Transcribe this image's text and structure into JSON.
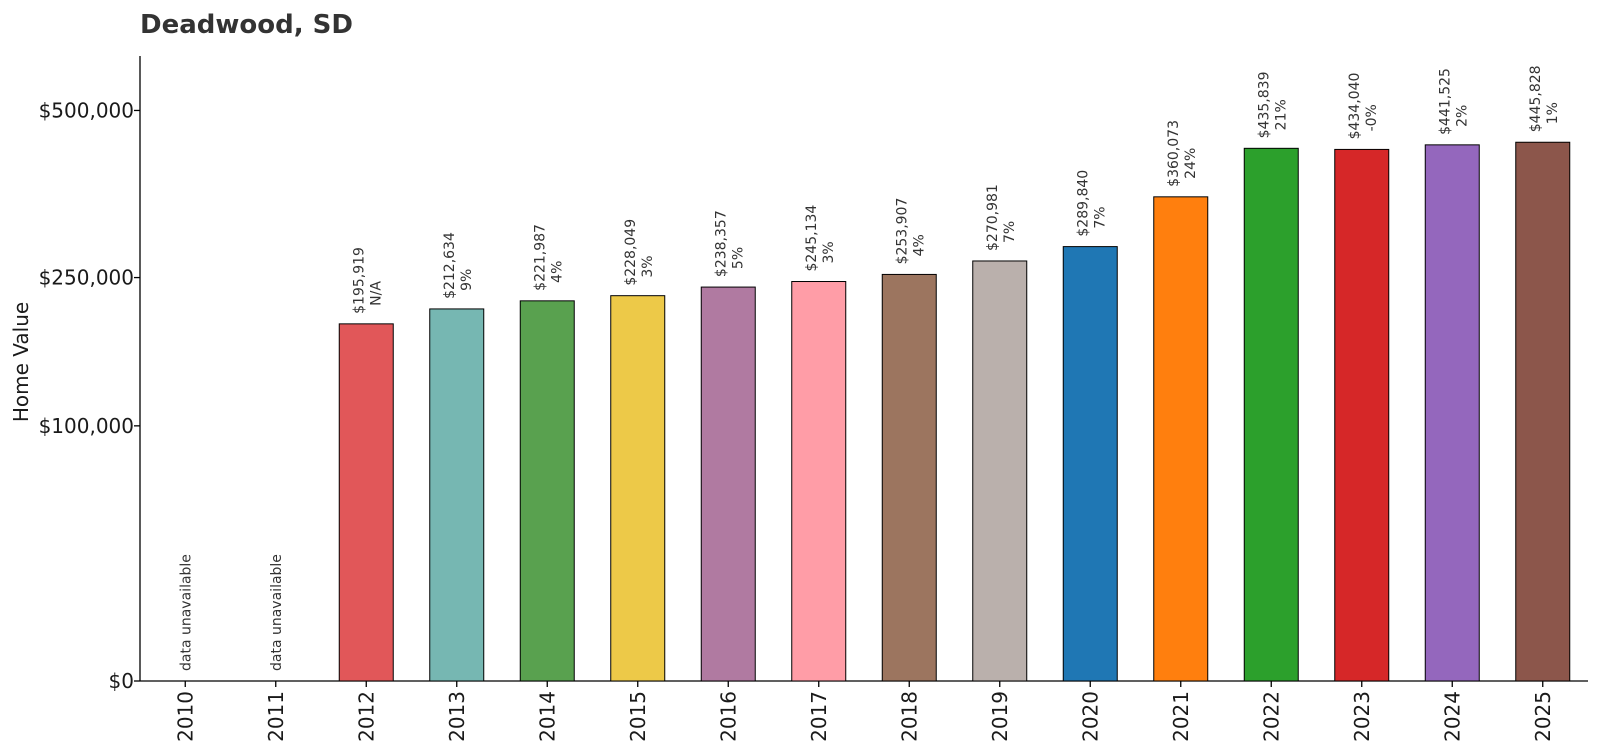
{
  "chart_data": {
    "type": "bar",
    "title": "Deadwood, SD",
    "xlabel": "",
    "ylabel": "Home Value",
    "ylim": [
      0,
      600000
    ],
    "y_scale": "sqrt",
    "y_ticks": [
      0,
      100000,
      250000,
      500000
    ],
    "y_tick_labels": [
      "$0",
      "$100,000",
      "$250,000",
      "$500,000"
    ],
    "grid": false,
    "legend": "none",
    "categories": [
      "2010",
      "2011",
      "2012",
      "2013",
      "2014",
      "2015",
      "2016",
      "2017",
      "2018",
      "2019",
      "2020",
      "2021",
      "2022",
      "2023",
      "2024",
      "2025"
    ],
    "values": [
      null,
      null,
      195919,
      212634,
      221987,
      228049,
      238357,
      245134,
      253907,
      270981,
      289840,
      360073,
      435839,
      434040,
      441525,
      445828
    ],
    "value_labels": [
      "data unavailable",
      "data unavailable",
      "$195,919",
      "$212,634",
      "$221,987",
      "$228,049",
      "$238,357",
      "$245,134",
      "$253,907",
      "$270,981",
      "$289,840",
      "$360,073",
      "$435,839",
      "$434,040",
      "$441,525",
      "$445,828"
    ],
    "change_labels": [
      "",
      "",
      "N/A",
      "9%",
      "4%",
      "3%",
      "5%",
      "3%",
      "4%",
      "7%",
      "7%",
      "24%",
      "21%",
      "-0%",
      "2%",
      "1%"
    ],
    "colors": [
      "#e15759",
      "#e15759",
      "#e15759",
      "#76b7b2",
      "#59a14f",
      "#edc948",
      "#b07aa1",
      "#ff9da7",
      "#9c755f",
      "#bab0ac",
      "#1f77b4",
      "#ff7f0e",
      "#2ca02c",
      "#d62728",
      "#9467bd",
      "#8c564b"
    ]
  }
}
